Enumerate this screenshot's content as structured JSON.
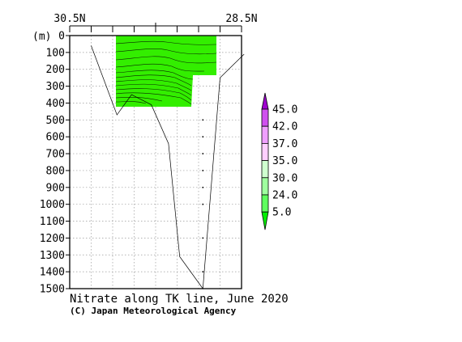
{
  "chart_data": {
    "type": "heatmap",
    "title": "Nitrate along TK line, June 2020",
    "credit": "(C) Japan Meteorological Agency",
    "ylabel": "(m)",
    "x_ticks": [
      "30.5N",
      "28.5N"
    ],
    "y_ticks": [
      0,
      100,
      200,
      300,
      400,
      500,
      600,
      700,
      800,
      900,
      1000,
      1100,
      1200,
      1300,
      1400,
      1500
    ],
    "ylim": [
      0,
      1500
    ],
    "xlim": [
      30.5,
      28.5
    ],
    "y_inverted": true,
    "grid": true,
    "colorbar": {
      "levels": [
        "45.0",
        "42.0",
        "37.0",
        "35.0",
        "30.0",
        "24.0",
        "5.0"
      ],
      "colors": [
        "#9f00cf",
        "#cf4fee",
        "#ef9fff",
        "#ffcfff",
        "#cfffcf",
        "#9fff9f",
        "#5fff5f",
        "#00ee00"
      ],
      "extend": "both"
    },
    "observed_region_depth_m": [
      0,
      420
    ],
    "fill_color": "#33ee00",
    "station_latitudes": [
      30.25,
      30.0,
      29.75,
      29.5,
      29.25,
      29.0,
      28.75,
      28.5
    ],
    "bottom_profile": [
      {
        "lat": 30.25,
        "depth": 60
      },
      {
        "lat": 29.95,
        "depth": 470
      },
      {
        "lat": 29.78,
        "depth": 350
      },
      {
        "lat": 29.55,
        "depth": 410
      },
      {
        "lat": 29.35,
        "depth": 640
      },
      {
        "lat": 29.22,
        "depth": 1310
      },
      {
        "lat": 28.95,
        "depth": 1500
      },
      {
        "lat": 28.75,
        "depth": 250
      },
      {
        "lat": 28.47,
        "depth": 110
      }
    ]
  }
}
